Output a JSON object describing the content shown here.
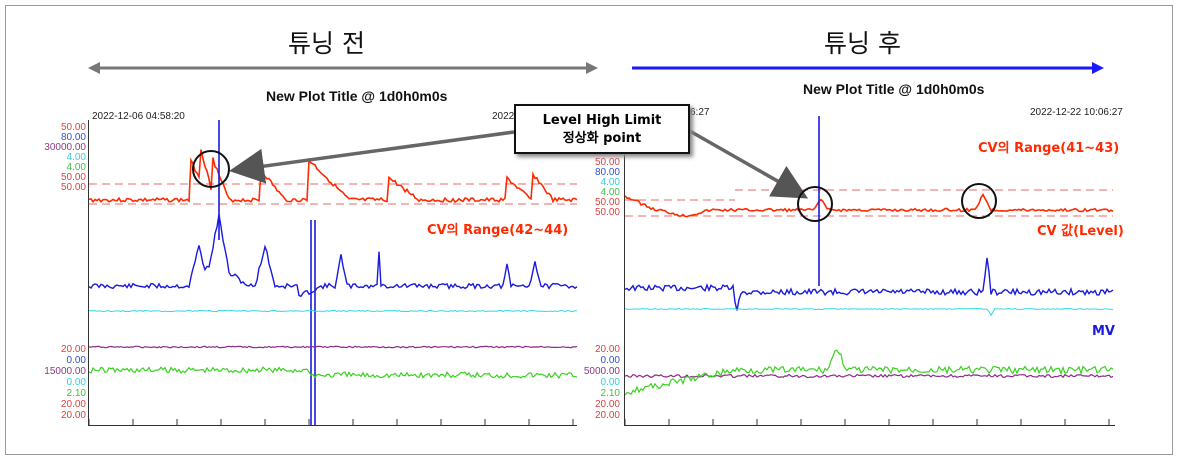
{
  "headings": {
    "before": "튜닝 전",
    "after": "튜닝 후"
  },
  "left": {
    "plot_title": "New Plot Title  @ 1d0h0m0s",
    "timestamp": "2022-12-06  04:58:20",
    "timestamp_right_fragment": "2022-",
    "scale_top": [
      {
        "text": "50.00",
        "color": "#e04040"
      },
      {
        "text": "80.00",
        "color": "#3050d0"
      },
      {
        "text": "30000.00",
        "color": "#8a3a8a"
      },
      {
        "text": "4.00",
        "color": "#30d0e0"
      },
      {
        "text": "4.00",
        "color": "#40c040"
      },
      {
        "text": "50.00",
        "color": "#e04040"
      },
      {
        "text": "50.00",
        "color": "#e04040"
      }
    ],
    "scale_bottom": [
      {
        "text": "20.00",
        "color": "#e04040"
      },
      {
        "text": "0.00",
        "color": "#3050d0"
      },
      {
        "text": "15000.00",
        "color": "#8a3a8a"
      },
      {
        "text": "0.00",
        "color": "#30d0e0"
      },
      {
        "text": "2.10",
        "color": "#40c040"
      },
      {
        "text": "20.00",
        "color": "#e04040"
      },
      {
        "text": "20.00",
        "color": "#e04040"
      }
    ],
    "annotation_range": "CV의 Range(42~44)"
  },
  "right": {
    "plot_title": "New Plot Title  @ 1d0h0m0s",
    "timestamp": "2022-12-22  10:06:27",
    "timestamp_left_fragment": "6:27",
    "scale_top": [
      {
        "text": "50.00",
        "color": "#e04040"
      },
      {
        "text": "80.00",
        "color": "#3050d0"
      },
      {
        "text": "4.00",
        "color": "#30d0e0"
      },
      {
        "text": "4.00",
        "color": "#40c040"
      },
      {
        "text": "50.00",
        "color": "#e04040"
      },
      {
        "text": "50.00",
        "color": "#e04040"
      }
    ],
    "scale_bottom": [
      {
        "text": "20.00",
        "color": "#e04040"
      },
      {
        "text": "0.00",
        "color": "#3050d0"
      },
      {
        "text": "5000.00",
        "color": "#8a3a8a"
      },
      {
        "text": "0.00",
        "color": "#30d0e0"
      },
      {
        "text": "2.10",
        "color": "#40c040"
      },
      {
        "text": "20.00",
        "color": "#e04040"
      },
      {
        "text": "20.00",
        "color": "#e04040"
      }
    ],
    "annotation_range": "CV의 Range(41~43)",
    "annotation_cv": "CV 값(Level)",
    "annotation_mv": "MV"
  },
  "callout": {
    "line1": "Level High Limit",
    "line2": "정상화 point"
  },
  "colors": {
    "cv": "#ff2a00",
    "mv": "#1a1adc",
    "aux1": "#30d8e8",
    "aux2": "#39d21f",
    "aux3": "#8a2a8a",
    "arrow_gray": "#777777",
    "arrow_blue": "#1a1aff"
  }
}
